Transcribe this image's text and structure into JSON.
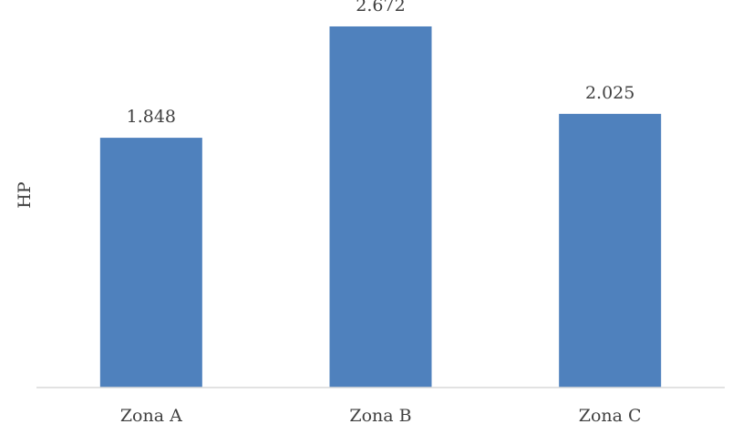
{
  "chart_data": {
    "type": "bar",
    "title": "",
    "xlabel": "",
    "ylabel": "HP",
    "categories": [
      "Zona A",
      "Zona B",
      "Zona C"
    ],
    "values": [
      1.848,
      2.672,
      2.025
    ],
    "value_labels": [
      "1.848",
      "2.672",
      "2.025"
    ],
    "ylim": [
      0,
      2.8
    ],
    "grid": false,
    "legend": "none",
    "bar_color": "#4f81bd",
    "axis_color": "#d9d9d9",
    "text_color": "#404040"
  }
}
